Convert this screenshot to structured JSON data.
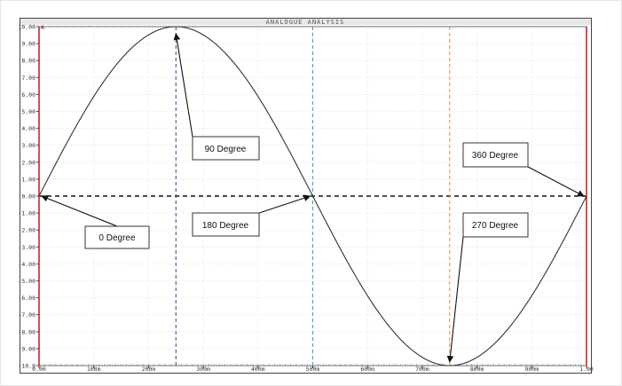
{
  "window": {
    "title": "ANALOGUE ANALYSIS"
  },
  "chart_data": {
    "type": "line",
    "title": "ANALOGUE ANALYSIS",
    "xlabel": "",
    "ylabel": "",
    "y_unit_label": "A",
    "xlim": [
      0,
      1
    ],
    "ylim": [
      -10,
      10
    ],
    "grid": true,
    "x_tick_labels": [
      "0.00",
      "100m",
      "200m",
      "300m",
      "400m",
      "500m",
      "600m",
      "700m",
      "800m",
      "900m",
      "1.00"
    ],
    "x_ticks": [
      0,
      0.1,
      0.2,
      0.3,
      0.4,
      0.5,
      0.6,
      0.7,
      0.8,
      0.9,
      1.0
    ],
    "y_tick_labels": [
      "10.00",
      "9.00",
      "8.00",
      "7.00",
      "6.00",
      "5.00",
      "4.00",
      "3.00",
      "2.00",
      "1.00",
      "0.00",
      "-1.00",
      "-2.00",
      "-3.00",
      "-4.00",
      "-5.00",
      "-6.00",
      "-7.00",
      "-8.00",
      "-9.00",
      "-10.0"
    ],
    "y_ticks": [
      10,
      9,
      8,
      7,
      6,
      5,
      4,
      3,
      2,
      1,
      0,
      -1,
      -2,
      -3,
      -4,
      -5,
      -6,
      -7,
      -8,
      -9,
      -10
    ],
    "series": [
      {
        "amplitude": 10,
        "frequency": 1,
        "x": [
          0,
          0.05,
          0.1,
          0.15,
          0.2,
          0.25,
          0.3,
          0.35,
          0.4,
          0.45,
          0.5,
          0.55,
          0.6,
          0.65,
          0.7,
          0.75,
          0.8,
          0.85,
          0.9,
          0.95,
          1.0
        ],
        "y": [
          0,
          3.09,
          5.88,
          8.09,
          9.51,
          10,
          9.51,
          8.09,
          5.88,
          3.09,
          0,
          -3.09,
          -5.88,
          -8.09,
          -9.51,
          -10,
          -9.51,
          -8.09,
          -5.88,
          -3.09,
          0
        ],
        "color": "#333333"
      }
    ],
    "reference_lines": [
      {
        "kind": "horizontal",
        "y": 0,
        "color": "#111111",
        "style": "dashed"
      },
      {
        "kind": "vertical",
        "x": 0.25,
        "color": "#3b3f9a",
        "style": "dashed"
      },
      {
        "kind": "vertical",
        "x": 0.5,
        "color": "#3aa0c8",
        "style": "dashed"
      },
      {
        "kind": "vertical",
        "x": 0.75,
        "color": "#f08a2c",
        "style": "dashed"
      },
      {
        "kind": "vertical",
        "x": 0.0,
        "color": "#cc2222",
        "style": "solid"
      },
      {
        "kind": "vertical",
        "x": 1.0,
        "color": "#cc2222",
        "style": "solid"
      }
    ],
    "annotations": [
      {
        "text": "0 Degree",
        "target": [
          0,
          0
        ]
      },
      {
        "text": "90 Degree",
        "target": [
          0.25,
          10
        ]
      },
      {
        "text": "180 Degree",
        "target": [
          0.5,
          0
        ]
      },
      {
        "text": "270 Degree",
        "target": [
          0.75,
          -10
        ]
      },
      {
        "text": "360 Degree",
        "target": [
          1.0,
          0
        ]
      }
    ]
  }
}
